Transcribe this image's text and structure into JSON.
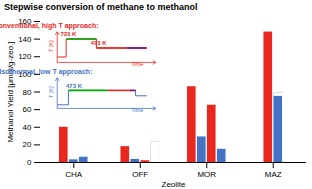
{
  "chart_data": {
    "type": "bar",
    "title": "Stepwise conversion of methane to methanol",
    "xlabel": "Zeolite",
    "ylabel": "Methanol Yield [μmol/g-zeo.]",
    "categories": [
      "CHA",
      "OFF",
      "MOR",
      "MAZ"
    ],
    "series": [
      {
        "color": "#e8281e",
        "values": [
          40.0,
          18.0,
          86.0,
          148.0
        ]
      },
      {
        "color": "#4472c4",
        "values": [
          3.0,
          3.5,
          29.0,
          75.0
        ]
      },
      {
        "colors": [
          "#4472c4",
          "#e8281e",
          "#e8281e",
          null
        ],
        "values": [
          6.0,
          2.0,
          65.0,
          null
        ]
      },
      {
        "color": "#4472c4",
        "line_style": "hatched",
        "values": [
          null,
          23.0,
          null,
          null
        ]
      },
      {
        "color": "#4472c4",
        "values": [
          null,
          null,
          15.0,
          null
        ]
      },
      {
        "color": "#4472c4",
        "line_style": "hatched",
        "stacked": true,
        "values": [
          null,
          null,
          null,
          4.0
        ]
      }
    ],
    "ylim": [
      0,
      160
    ],
    "yticks": [
      0,
      20,
      40,
      60,
      80,
      100,
      120,
      140,
      160
    ],
    "grid": false,
    "annotations": [
      {
        "text": "Conventional, high T approach:",
        "color": "#e8281e",
        "labels": [
          "T [K]",
          "Time",
          "723 K",
          "473 K"
        ]
      },
      {
        "text": "Isothermal, low T approach:",
        "color": "#4472c4",
        "labels": [
          "T [K]",
          "Time",
          "473 K"
        ]
      }
    ]
  }
}
